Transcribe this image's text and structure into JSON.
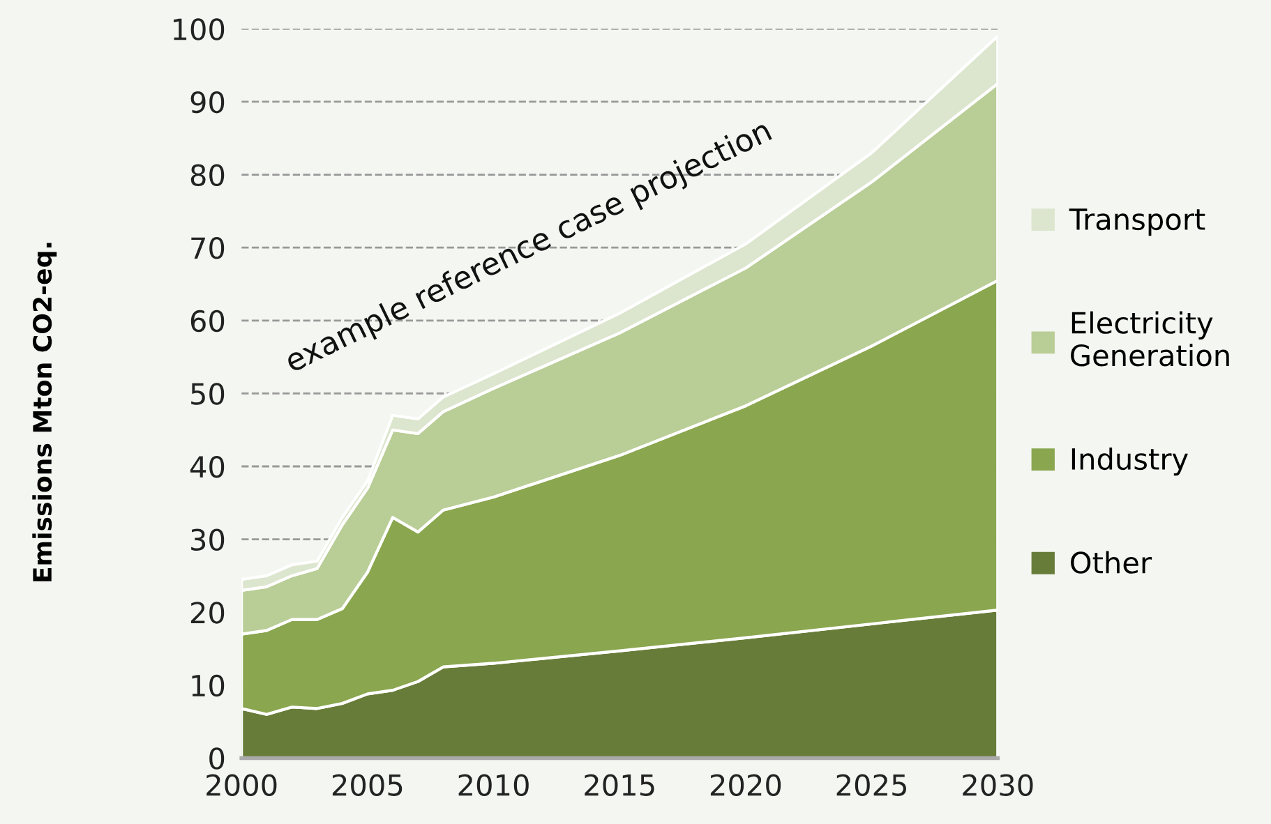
{
  "chart_data": {
    "type": "area",
    "stacked": true,
    "ylabel": "Emissions Mton CO2-eq.",
    "x": [
      2000,
      2001,
      2002,
      2003,
      2004,
      2005,
      2006,
      2007,
      2008,
      2010,
      2015,
      2020,
      2025,
      2030
    ],
    "series": [
      {
        "name": "Other",
        "color": "#687c3a",
        "values": [
          6.8,
          6,
          7,
          6.8,
          7.5,
          8.8,
          9.3,
          10.5,
          12.5,
          13,
          14.7,
          16.5,
          18.4,
          20.3
        ]
      },
      {
        "name": "Industry",
        "color": "#8aa64f",
        "values": [
          10.2,
          11.5,
          12,
          12.2,
          13,
          16.7,
          23.7,
          20.5,
          21.5,
          22.8,
          26.8,
          31.8,
          38.1,
          45.2
        ]
      },
      {
        "name": "Electricity Generation",
        "color": "#b9cd96",
        "values": [
          6,
          6,
          6,
          7,
          11.5,
          11.5,
          12,
          13.5,
          13.5,
          14.9,
          16.8,
          18.9,
          22.5,
          27
        ]
      },
      {
        "name": "Transport",
        "color": "#dce5cd",
        "values": [
          1.5,
          1.5,
          1.5,
          1,
          1,
          1,
          2,
          2,
          2,
          2,
          2.7,
          3.3,
          4,
          6.5
        ]
      }
    ],
    "xlim": [
      2000,
      2030
    ],
    "xticks": [
      2000,
      2005,
      2010,
      2015,
      2020,
      2025,
      2030
    ],
    "ylim": [
      0,
      100
    ],
    "yticks": [
      0,
      10,
      20,
      30,
      40,
      50,
      60,
      70,
      80,
      90,
      100
    ],
    "grid": "y",
    "legend": "right",
    "annotations": [
      "example reference case projection"
    ]
  }
}
